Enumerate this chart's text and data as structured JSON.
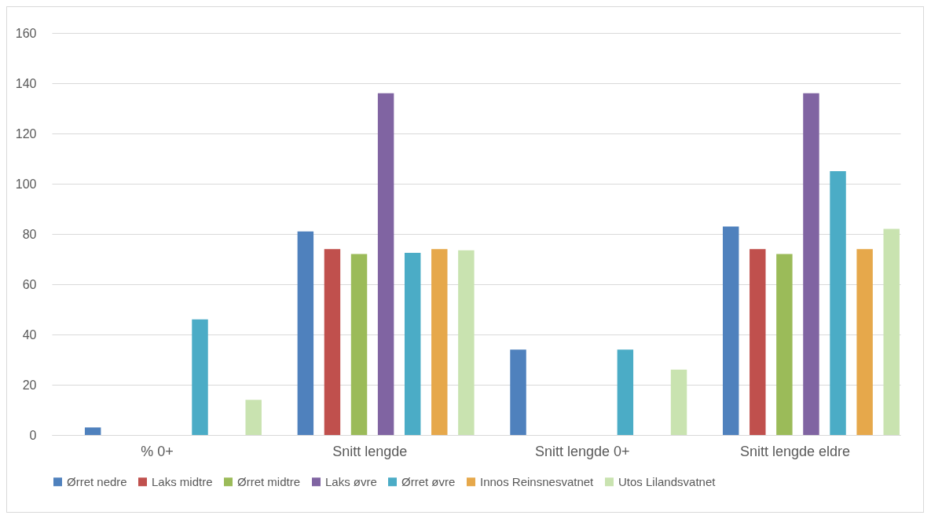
{
  "chart_data": {
    "type": "bar",
    "categories": [
      "% 0+",
      "Snitt lengde",
      "Snitt lengde 0+",
      "Snitt lengde eldre"
    ],
    "series": [
      {
        "name": "Ørret nedre",
        "color": "#4f81bd",
        "values": [
          3,
          81,
          34,
          83
        ]
      },
      {
        "name": "Laks midtre",
        "color": "#c0504d",
        "values": [
          0,
          74,
          0,
          74
        ]
      },
      {
        "name": "Ørret midtre",
        "color": "#9bbb59",
        "values": [
          0,
          72,
          0,
          72
        ]
      },
      {
        "name": "Laks øvre",
        "color": "#8064a2",
        "values": [
          0,
          136,
          0,
          136
        ]
      },
      {
        "name": "Ørret øvre",
        "color": "#4bacc6",
        "values": [
          46,
          72.5,
          34,
          105
        ]
      },
      {
        "name": "Innos Reinsnesvatnet",
        "color": "#e6a84b",
        "values": [
          0,
          74,
          0,
          74
        ]
      },
      {
        "name": "Utos Lilandsvatnet",
        "color": "#c9e3b0",
        "values": [
          14,
          73.5,
          26,
          82
        ]
      }
    ],
    "ylim": [
      0,
      160
    ],
    "yticks": [
      0,
      20,
      40,
      60,
      80,
      100,
      120,
      140,
      160
    ],
    "grid": "y",
    "legend": "bottom"
  }
}
